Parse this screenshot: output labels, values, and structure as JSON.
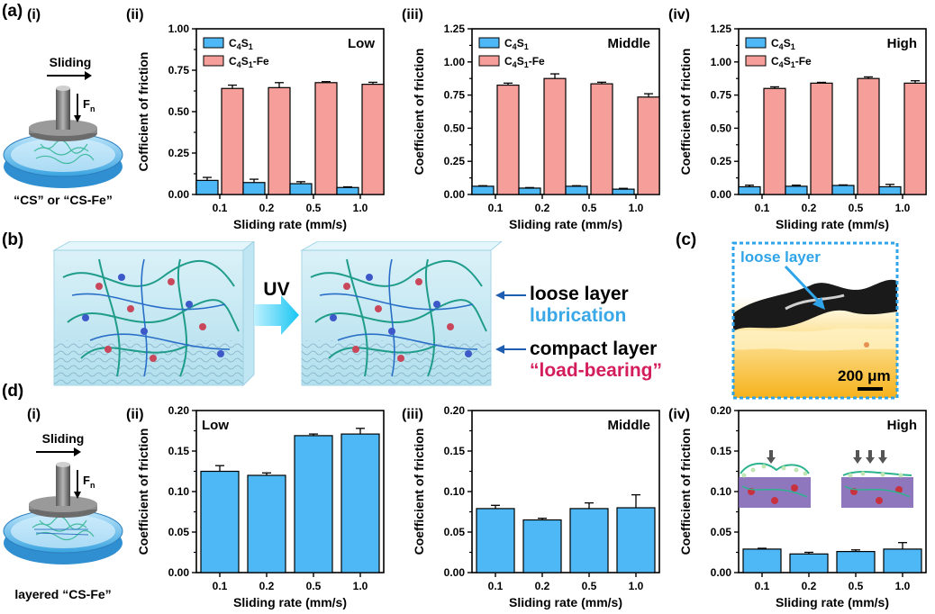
{
  "labels": {
    "a": "(a)",
    "a_i": "(i)",
    "a_ii": "(ii)",
    "a_iii": "(iii)",
    "a_iv": "(iv)",
    "b": "(b)",
    "c": "(c)",
    "d": "(d)",
    "d_i": "(i)",
    "d_ii": "(ii)",
    "d_iii": "(iii)",
    "d_iv": "(iv)"
  },
  "schematic_a": {
    "sliding": "Sliding",
    "force": "F",
    "force_sub": "n",
    "caption": "“CS” or “CS-Fe”"
  },
  "schematic_d": {
    "sliding": "Sliding",
    "force": "F",
    "force_sub": "n",
    "caption": "layered “CS-Fe”"
  },
  "panel_b": {
    "uv": "UV",
    "loose_layer": "loose layer",
    "lubrication": "lubrication",
    "compact_layer": "compact layer",
    "load_bearing": "“load-bearing”"
  },
  "panel_c": {
    "annotation": "loose layer",
    "scalebar": "200 μm"
  },
  "colors": {
    "blue": "#4db8f5",
    "pink": "#f59e9a",
    "lub_blue": "#3aa8e6",
    "load_pink": "#d41d5c",
    "frame_blue": "#2fa4e8"
  },
  "chart_data": [
    {
      "id": "a_ii",
      "type": "bar",
      "title": "Low",
      "xlabel": "Sliding rate (mm/s)",
      "ylabel": "Cofficient of friction",
      "categories": [
        "0.1",
        "0.2",
        "0.5",
        "1.0"
      ],
      "ylim": [
        0,
        1.0
      ],
      "yticks": [
        "0.00",
        "0.25",
        "0.50",
        "0.75",
        "1.00"
      ],
      "legend_position": "top-left",
      "series": [
        {
          "name": "C4S1",
          "name_main": "C",
          "name_parts": [
            "4",
            "S",
            "1",
            ""
          ],
          "color": "#4db8f5",
          "values": [
            0.085,
            0.072,
            0.065,
            0.042
          ],
          "errors": [
            0.018,
            0.02,
            0.012,
            0.004
          ]
        },
        {
          "name": "C4S1-Fe",
          "name_main": "C",
          "name_parts": [
            "4",
            "S",
            "1",
            "-Fe"
          ],
          "color": "#f59e9a",
          "values": [
            0.64,
            0.645,
            0.675,
            0.665
          ],
          "errors": [
            0.02,
            0.03,
            0.006,
            0.012
          ]
        }
      ]
    },
    {
      "id": "a_iii",
      "type": "bar",
      "title": "Middle",
      "xlabel": "Sliding rate (mm/s)",
      "ylabel": "Coefficient of friction",
      "categories": [
        "0.1",
        "0.2",
        "0.5",
        "1.0"
      ],
      "ylim": [
        0,
        1.25
      ],
      "yticks": [
        "0.00",
        "0.25",
        "0.50",
        "0.75",
        "1.00",
        "1.25"
      ],
      "legend_position": "top-left",
      "series": [
        {
          "name": "C4S1",
          "name_main": "C",
          "name_parts": [
            "4",
            "S",
            "1",
            ""
          ],
          "color": "#4db8f5",
          "values": [
            0.062,
            0.048,
            0.062,
            0.04
          ],
          "errors": [
            0.004,
            0.004,
            0.004,
            0.006
          ]
        },
        {
          "name": "C4S1-Fe",
          "name_main": "C",
          "name_parts": [
            "4",
            "S",
            "1",
            "-Fe"
          ],
          "color": "#f59e9a",
          "values": [
            0.825,
            0.875,
            0.835,
            0.735
          ],
          "errors": [
            0.015,
            0.035,
            0.012,
            0.025
          ]
        }
      ]
    },
    {
      "id": "a_iv",
      "type": "bar",
      "title": "High",
      "xlabel": "Sliding rate (mm/s)",
      "ylabel": "Coefficient of friction",
      "categories": [
        "0.1",
        "0.2",
        "0.5",
        "1.0"
      ],
      "ylim": [
        0,
        1.25
      ],
      "yticks": [
        "0.00",
        "0.25",
        "0.50",
        "0.75",
        "1.00",
        "1.25"
      ],
      "legend_position": "top-left",
      "series": [
        {
          "name": "C4S1",
          "name_main": "C",
          "name_parts": [
            "4",
            "S",
            "1",
            ""
          ],
          "color": "#4db8f5",
          "values": [
            0.058,
            0.062,
            0.068,
            0.058
          ],
          "errors": [
            0.012,
            0.008,
            0.004,
            0.018
          ]
        },
        {
          "name": "C4S1-Fe",
          "name_main": "C",
          "name_parts": [
            "4",
            "S",
            "1",
            "-Fe"
          ],
          "color": "#f59e9a",
          "values": [
            0.8,
            0.84,
            0.875,
            0.84
          ],
          "errors": [
            0.012,
            0.006,
            0.012,
            0.018
          ]
        }
      ]
    },
    {
      "id": "d_ii",
      "type": "bar",
      "title": "Low",
      "xlabel": "Sliding rate (mm/s)",
      "ylabel": "Coefficient of friction",
      "categories": [
        "0.1",
        "0.2",
        "0.5",
        "1.0"
      ],
      "ylim": [
        0,
        0.2
      ],
      "yticks": [
        "0.00",
        "0.05",
        "0.10",
        "0.15",
        "0.20"
      ],
      "series": [
        {
          "color": "#4db8f5",
          "values": [
            0.125,
            0.12,
            0.169,
            0.171
          ],
          "errors": [
            0.007,
            0.003,
            0.002,
            0.007
          ]
        }
      ]
    },
    {
      "id": "d_iii",
      "type": "bar",
      "title": "Middle",
      "xlabel": "Sliding rate (mm/s)",
      "ylabel": "Coefficient of friction",
      "categories": [
        "0.1",
        "0.2",
        "0.5",
        "1.0"
      ],
      "ylim": [
        0,
        0.2
      ],
      "yticks": [
        "0.00",
        "0.05",
        "0.10",
        "0.15",
        "0.20"
      ],
      "series": [
        {
          "color": "#4db8f5",
          "values": [
            0.079,
            0.065,
            0.079,
            0.08
          ],
          "errors": [
            0.004,
            0.002,
            0.007,
            0.016
          ]
        }
      ]
    },
    {
      "id": "d_iv",
      "type": "bar",
      "title": "High",
      "xlabel": "Sliding rate (mm/s)",
      "ylabel": "Coefficient of friction",
      "categories": [
        "0.1",
        "0.2",
        "0.5",
        "1.0"
      ],
      "ylim": [
        0,
        0.2
      ],
      "yticks": [
        "0.00",
        "0.05",
        "0.10",
        "0.15",
        "0.20"
      ],
      "series": [
        {
          "color": "#4db8f5",
          "values": [
            0.029,
            0.023,
            0.026,
            0.029
          ],
          "errors": [
            0.001,
            0.002,
            0.002,
            0.008
          ]
        }
      ]
    }
  ]
}
